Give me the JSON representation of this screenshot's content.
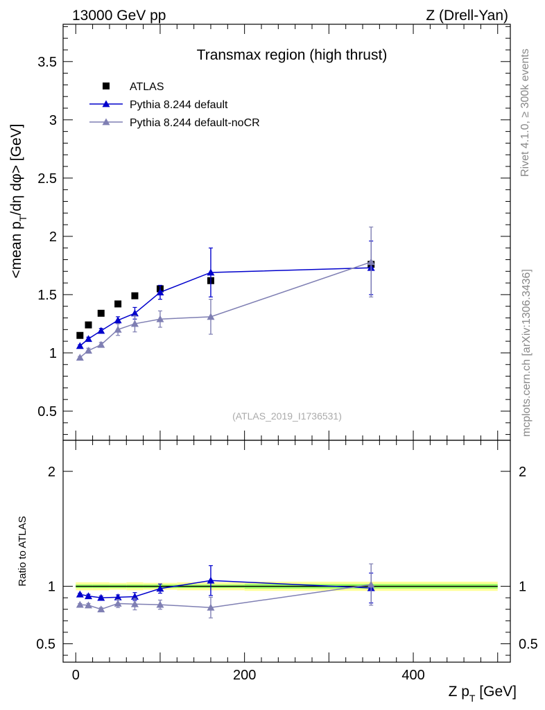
{
  "header": {
    "energy_label": "13000 GeV pp",
    "process_label": "Z (Drell-Yan)",
    "rivet_label": "Rivet 4.1.0, ≥ 300k events",
    "mcplots_label": "mcplots.cern.ch [arXiv:1306.3436]",
    "analysis_label": "(ATLAS_2019_I1736531)"
  },
  "colors": {
    "data": "#000000",
    "default": "#0000cc",
    "nocr": "#7f7fb3",
    "band_inner": "#99ff66",
    "band_outer": "#ffff99"
  },
  "chart_data": [
    {
      "type": "scatter",
      "panel": "main",
      "title": "Transmax region (high thrust)",
      "ylabel": "<mean p_T/dη dφ> [GeV]",
      "xlim": [
        -15,
        515
      ],
      "ylim": [
        0.25,
        3.82
      ],
      "y_ticks": [
        0.5,
        1,
        1.5,
        2,
        2.5,
        3,
        3.5
      ],
      "y_tick_labels": [
        "0.5",
        "1",
        "1.5",
        "2",
        "2.5",
        "3",
        "3.5"
      ],
      "legend": [
        "ATLAS",
        "Pythia 8.244 default",
        "Pythia 8.244 default-noCR"
      ],
      "legend_position": "top-left",
      "series": [
        {
          "name": "ATLAS",
          "key": "data",
          "marker": "square",
          "x": [
            5,
            15,
            30,
            50,
            70,
            100,
            160,
            350
          ],
          "y": [
            1.15,
            1.24,
            1.34,
            1.42,
            1.49,
            1.55,
            1.62,
            1.76
          ],
          "err": [
            0.01,
            0.01,
            0.01,
            0.01,
            0.01,
            0.02,
            0.02,
            0.02
          ]
        },
        {
          "name": "Pythia 8.244 default",
          "key": "default",
          "marker": "triangle",
          "x": [
            5,
            15,
            30,
            50,
            70,
            100,
            160,
            350
          ],
          "y": [
            1.06,
            1.12,
            1.19,
            1.28,
            1.34,
            1.52,
            1.69,
            1.73
          ],
          "err": [
            0.01,
            0.015,
            0.02,
            0.03,
            0.05,
            0.06,
            0.21,
            0.23
          ]
        },
        {
          "name": "Pythia 8.244 default-noCR",
          "key": "nocr",
          "marker": "triangle",
          "x": [
            5,
            15,
            30,
            50,
            70,
            100,
            160,
            350
          ],
          "y": [
            0.96,
            1.02,
            1.07,
            1.2,
            1.25,
            1.29,
            1.31,
            1.78
          ],
          "err": [
            0.01,
            0.02,
            0.02,
            0.05,
            0.07,
            0.07,
            0.15,
            0.3
          ]
        }
      ]
    },
    {
      "type": "scatter",
      "panel": "ratio",
      "ylabel": "Ratio to ATLAS",
      "xlabel": "Z p_T [GeV]",
      "xlim": [
        -15,
        515
      ],
      "ylim": [
        0.34,
        2.27
      ],
      "y_ticks": [
        0.5,
        1,
        2
      ],
      "y_tick_labels": [
        "0.5",
        "1",
        "2"
      ],
      "x_ticks": [
        0,
        200,
        400
      ],
      "x_tick_labels": [
        "0",
        "200",
        "400"
      ],
      "band_bins": [
        {
          "x0": 0,
          "x1": 20,
          "inner": 0.015,
          "outer": 0.035
        },
        {
          "x0": 20,
          "x1": 40,
          "inner": 0.015,
          "outer": 0.035
        },
        {
          "x0": 40,
          "x1": 60,
          "inner": 0.015,
          "outer": 0.03
        },
        {
          "x0": 60,
          "x1": 80,
          "inner": 0.015,
          "outer": 0.035
        },
        {
          "x0": 80,
          "x1": 120,
          "inner": 0.015,
          "outer": 0.03
        },
        {
          "x0": 120,
          "x1": 200,
          "inner": 0.015,
          "outer": 0.035
        },
        {
          "x0": 200,
          "x1": 500,
          "inner": 0.02,
          "outer": 0.04
        }
      ],
      "series": [
        {
          "name": "Pythia 8.244 default",
          "key": "default",
          "x": [
            5,
            15,
            30,
            50,
            70,
            100,
            160,
            350
          ],
          "y": [
            0.93,
            0.915,
            0.9,
            0.905,
            0.91,
            0.98,
            1.05,
            0.985
          ],
          "err": [
            0.01,
            0.015,
            0.015,
            0.02,
            0.035,
            0.04,
            0.13,
            0.13
          ]
        },
        {
          "name": "Pythia 8.244 default-noCR",
          "key": "nocr",
          "x": [
            5,
            15,
            30,
            50,
            70,
            100,
            160,
            350
          ],
          "y": [
            0.84,
            0.835,
            0.8,
            0.85,
            0.845,
            0.84,
            0.815,
            1.015
          ],
          "err": [
            0.01,
            0.015,
            0.015,
            0.035,
            0.05,
            0.04,
            0.09,
            0.18
          ]
        }
      ]
    }
  ]
}
